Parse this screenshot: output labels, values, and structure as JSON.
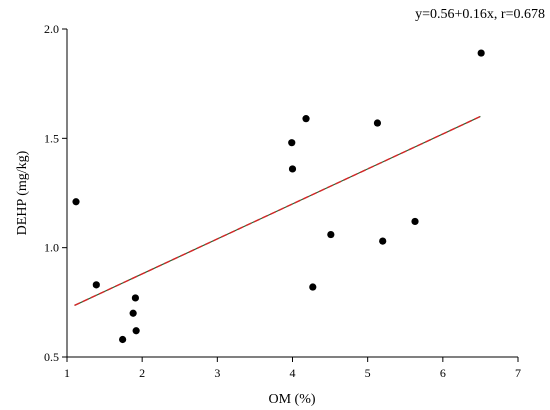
{
  "chart_data": {
    "type": "scatter",
    "equation_label": "y=0.56+0.16x, r=0.678",
    "xlabel": "OM (%)",
    "ylabel": "DEHP (mg/kg)",
    "xlim": [
      1,
      7
    ],
    "ylim": [
      0.5,
      2.0
    ],
    "x_ticks": [
      1,
      2,
      3,
      4,
      5,
      6,
      7
    ],
    "x_tick_labels": [
      "1",
      "2",
      "3",
      "4",
      "5",
      "6",
      "7"
    ],
    "y_ticks": [
      0.5,
      1.0,
      1.5,
      2.0
    ],
    "y_tick_labels": [
      "0.5",
      "1.0",
      "1.5",
      "2.0"
    ],
    "points": [
      {
        "x": 1.12,
        "y": 1.21
      },
      {
        "x": 1.39,
        "y": 0.83
      },
      {
        "x": 1.74,
        "y": 0.58
      },
      {
        "x": 1.88,
        "y": 0.7
      },
      {
        "x": 1.91,
        "y": 0.77
      },
      {
        "x": 1.92,
        "y": 0.62
      },
      {
        "x": 3.99,
        "y": 1.48
      },
      {
        "x": 4.0,
        "y": 1.36
      },
      {
        "x": 4.18,
        "y": 1.59
      },
      {
        "x": 4.27,
        "y": 0.82
      },
      {
        "x": 4.51,
        "y": 1.06
      },
      {
        "x": 5.13,
        "y": 1.57
      },
      {
        "x": 5.2,
        "y": 1.03
      },
      {
        "x": 5.63,
        "y": 1.12
      },
      {
        "x": 6.51,
        "y": 1.89
      }
    ],
    "fit_line": {
      "intercept": 0.56,
      "slope": 0.16,
      "x_range": [
        1.1,
        6.5
      ],
      "color": "#d62728",
      "style": "dashed"
    },
    "point_color": "#000000",
    "grid": false,
    "legend": "none"
  }
}
